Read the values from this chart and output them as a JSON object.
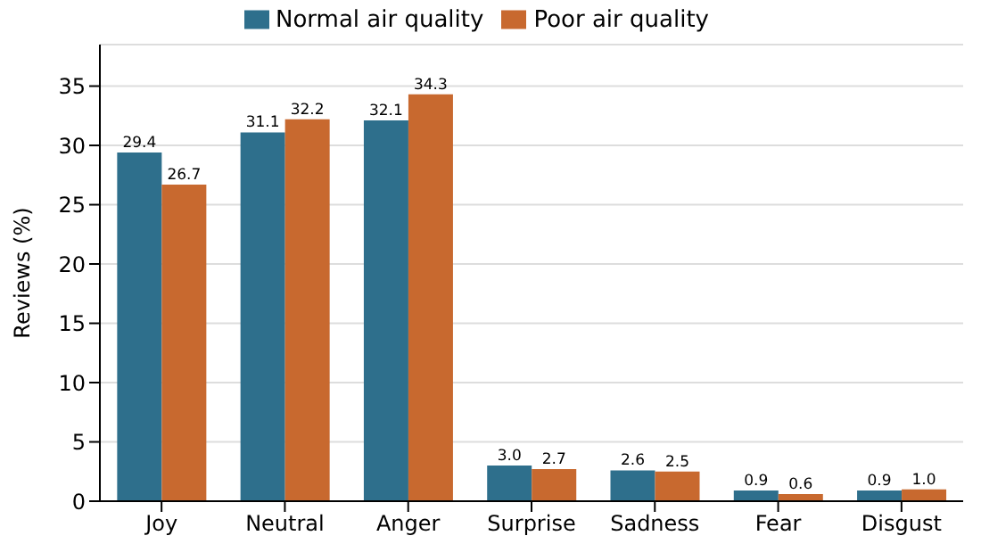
{
  "chart_data": {
    "type": "bar",
    "ylabel": "Reviews (%)",
    "categories": [
      "Joy",
      "Neutral",
      "Anger",
      "Surprise",
      "Sadness",
      "Fear",
      "Disgust"
    ],
    "series": [
      {
        "name": "Normal air quality",
        "color": "#2e6f8c",
        "values": [
          29.4,
          31.1,
          32.1,
          3.0,
          2.6,
          0.9,
          0.9
        ],
        "value_labels": [
          "29.4",
          "31.1",
          "32.1",
          "3.0",
          "2.6",
          "0.9",
          "0.9"
        ]
      },
      {
        "name": "Poor air quality",
        "color": "#c8692f",
        "values": [
          26.7,
          32.2,
          34.3,
          2.7,
          2.5,
          0.6,
          1.0
        ],
        "value_labels": [
          "26.7",
          "32.2",
          "34.3",
          "2.7",
          "2.5",
          "0.6",
          "1.0"
        ]
      }
    ],
    "ylim": [
      0,
      38.5
    ],
    "yticks": [
      0,
      5,
      10,
      15,
      20,
      25,
      30,
      35
    ],
    "grid": "y",
    "legend": "top"
  }
}
